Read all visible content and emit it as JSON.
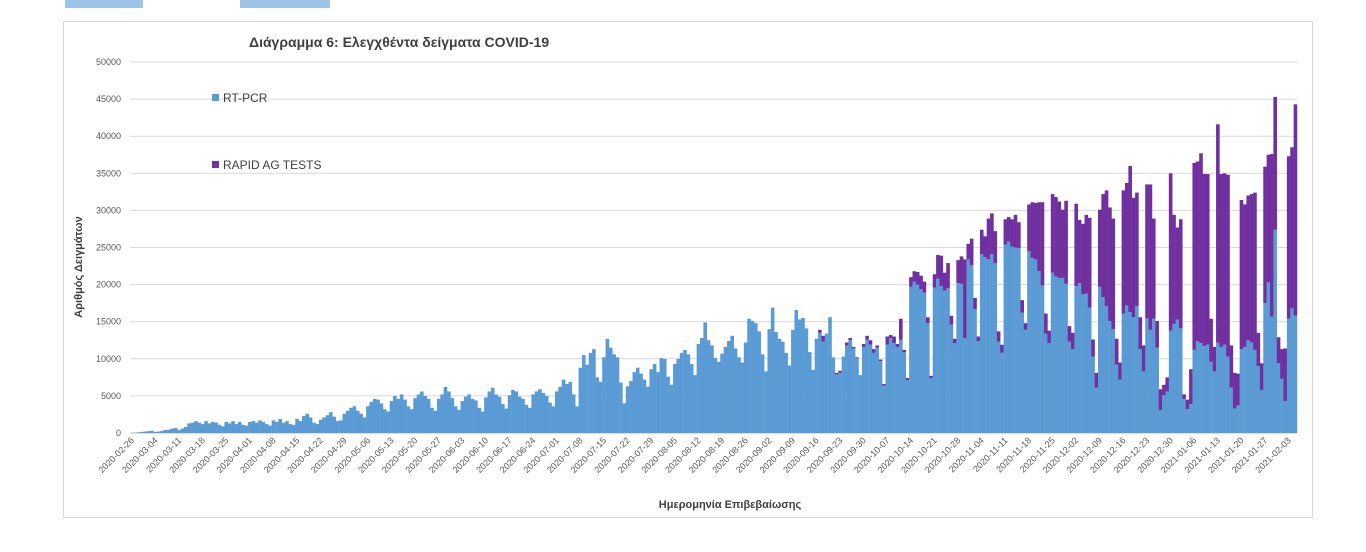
{
  "chart_data": {
    "type": "bar",
    "stacked": true,
    "title": "Διάγραμμα 6: Ελεγχθέντα δείγματα COVID-19",
    "xlabel": "Ημερομηνία Επιβεβαίωσης",
    "ylabel": "Αριθμός Δειγμάτων",
    "ylim": [
      0,
      50000
    ],
    "yticks": [
      0,
      5000,
      10000,
      15000,
      20000,
      25000,
      30000,
      35000,
      40000,
      45000,
      50000
    ],
    "grid": true,
    "legend_position": "top-left",
    "x_start": "2020-02-26",
    "x_end": "2021-02-03",
    "x_tick_labels": [
      "2020-02-26",
      "2020-03-04",
      "2020-03-11",
      "2020-03-18",
      "2020-03-25",
      "2020-04-01",
      "2020-04-08",
      "2020-04-15",
      "2020-04-22",
      "2020-04-29",
      "2020-05-06",
      "2020-05-13",
      "2020-05-20",
      "2020-05-27",
      "2020-06-03",
      "2020-06-10",
      "2020-06-17",
      "2020-06-24",
      "2020-07-01",
      "2020-07-08",
      "2020-07-15",
      "2020-07-22",
      "2020-07-29",
      "2020-08-05",
      "2020-08-12",
      "2020-08-19",
      "2020-08-26",
      "2020-09-02",
      "2020-09-09",
      "2020-09-16",
      "2020-09-23",
      "2020-09-30",
      "2020-10-07",
      "2020-10-14",
      "2020-10-21",
      "2020-10-28",
      "2020-11-04",
      "2020-11-11",
      "2020-11-18",
      "2020-11-25",
      "2020-12-02",
      "2020-12-09",
      "2020-12-16",
      "2020-12-23",
      "2020-12-30",
      "2021-01-06",
      "2021-01-13",
      "2021-01-20",
      "2021-01-27",
      "2021-02-03"
    ],
    "weekly_samples": [
      {
        "date": "2020-02-26",
        "rt_pcr": [
          0,
          50,
          100,
          150,
          200,
          250,
          300
        ],
        "rapid_ag": [
          0,
          0,
          0,
          0,
          0,
          0,
          0
        ]
      },
      {
        "date": "2020-03-04",
        "rt_pcr": [
          150,
          200,
          300,
          400,
          450,
          600,
          700
        ],
        "rapid_ag": [
          0,
          0,
          0,
          0,
          0,
          0,
          0
        ]
      },
      {
        "date": "2020-03-11",
        "rt_pcr": [
          400,
          600,
          800,
          1300,
          1400,
          1600,
          1400
        ],
        "rapid_ag": [
          0,
          0,
          0,
          0,
          0,
          0,
          0
        ]
      },
      {
        "date": "2020-03-18",
        "rt_pcr": [
          1200,
          1600,
          1300,
          1500,
          1400,
          1100,
          900
        ],
        "rapid_ag": [
          0,
          0,
          0,
          0,
          0,
          0,
          0
        ]
      },
      {
        "date": "2020-03-25",
        "rt_pcr": [
          1500,
          1300,
          1600,
          1200,
          1500,
          1100,
          1000
        ],
        "rapid_ag": [
          0,
          0,
          0,
          0,
          0,
          0,
          0
        ]
      },
      {
        "date": "2020-04-01",
        "rt_pcr": [
          1500,
          1600,
          1400,
          1700,
          1500,
          1200,
          1000
        ],
        "rapid_ag": [
          0,
          0,
          0,
          0,
          0,
          0,
          0
        ]
      },
      {
        "date": "2020-04-08",
        "rt_pcr": [
          1700,
          1500,
          1900,
          1400,
          1600,
          1200,
          1100
        ],
        "rapid_ag": [
          0,
          0,
          0,
          0,
          0,
          0,
          0
        ]
      },
      {
        "date": "2020-04-15",
        "rt_pcr": [
          1900,
          1600,
          2300,
          2600,
          2100,
          1400,
          1200
        ],
        "rapid_ag": [
          0,
          0,
          0,
          0,
          0,
          0,
          0
        ]
      },
      {
        "date": "2020-04-22",
        "rt_pcr": [
          1800,
          2100,
          2400,
          2800,
          2200,
          1600,
          1700
        ],
        "rapid_ag": [
          0,
          0,
          0,
          0,
          0,
          0,
          0
        ]
      },
      {
        "date": "2020-04-29",
        "rt_pcr": [
          2600,
          3000,
          3400,
          3600,
          3000,
          2600,
          2100
        ],
        "rapid_ag": [
          0,
          0,
          0,
          0,
          0,
          0,
          0
        ]
      },
      {
        "date": "2020-05-06",
        "rt_pcr": [
          3600,
          4200,
          4600,
          4500,
          4000,
          3200,
          2900
        ],
        "rapid_ag": [
          0,
          0,
          0,
          0,
          0,
          0,
          0
        ]
      },
      {
        "date": "2020-05-13",
        "rt_pcr": [
          4300,
          5000,
          4600,
          5200,
          4500,
          3600,
          3200
        ],
        "rapid_ag": [
          0,
          0,
          0,
          0,
          0,
          0,
          0
        ]
      },
      {
        "date": "2020-05-20",
        "rt_pcr": [
          4700,
          5200,
          5600,
          5000,
          4600,
          3400,
          3000
        ],
        "rapid_ag": [
          0,
          0,
          0,
          0,
          0,
          0,
          0
        ]
      },
      {
        "date": "2020-05-27",
        "rt_pcr": [
          4600,
          5200,
          6200,
          5600,
          4700,
          3600,
          3100
        ],
        "rapid_ag": [
          0,
          0,
          0,
          0,
          0,
          0,
          0
        ]
      },
      {
        "date": "2020-06-03",
        "rt_pcr": [
          4300,
          4900,
          5200,
          4600,
          4400,
          3400,
          2900
        ],
        "rapid_ag": [
          0,
          0,
          0,
          0,
          0,
          0,
          0
        ]
      },
      {
        "date": "2020-06-10",
        "rt_pcr": [
          4800,
          5600,
          6100,
          5200,
          4900,
          3900,
          3300
        ],
        "rapid_ag": [
          0,
          0,
          0,
          0,
          0,
          0,
          0
        ]
      },
      {
        "date": "2020-06-17",
        "rt_pcr": [
          5100,
          5800,
          5600,
          4900,
          4600,
          3800,
          3400
        ],
        "rapid_ag": [
          0,
          0,
          0,
          0,
          0,
          0,
          0
        ]
      },
      {
        "date": "2020-06-24",
        "rt_pcr": [
          5200,
          5600,
          5900,
          5400,
          5000,
          4100,
          3600
        ],
        "rapid_ag": [
          0,
          0,
          0,
          0,
          0,
          0,
          0
        ]
      },
      {
        "date": "2020-07-01",
        "rt_pcr": [
          5600,
          6200,
          7200,
          6600,
          6900,
          5200,
          3600
        ],
        "rapid_ag": [
          0,
          0,
          0,
          0,
          0,
          0,
          0
        ]
      },
      {
        "date": "2020-07-08",
        "rt_pcr": [
          8800,
          10500,
          9200,
          10800,
          11300,
          7500,
          6900
        ],
        "rapid_ag": [
          0,
          0,
          0,
          0,
          0,
          0,
          0
        ]
      },
      {
        "date": "2020-07-15",
        "rt_pcr": [
          10200,
          12700,
          11500,
          10600,
          10200,
          6800,
          4000
        ],
        "rapid_ag": [
          0,
          0,
          0,
          0,
          0,
          0,
          0
        ]
      },
      {
        "date": "2020-07-22",
        "rt_pcr": [
          6300,
          7000,
          8200,
          8800,
          8000,
          7200,
          6200
        ],
        "rapid_ag": [
          0,
          0,
          0,
          0,
          0,
          0,
          0
        ]
      },
      {
        "date": "2020-07-29",
        "rt_pcr": [
          8600,
          9300,
          8200,
          10100,
          10000,
          7600,
          6500
        ],
        "rapid_ag": [
          0,
          0,
          0,
          0,
          0,
          0,
          0
        ]
      },
      {
        "date": "2020-08-05",
        "rt_pcr": [
          9300,
          10000,
          10800,
          11200,
          10600,
          9300,
          7800
        ],
        "rapid_ag": [
          0,
          0,
          0,
          0,
          0,
          0,
          0
        ]
      },
      {
        "date": "2020-08-12",
        "rt_pcr": [
          12000,
          12800,
          14900,
          12500,
          11800,
          10100,
          9600
        ],
        "rapid_ag": [
          0,
          0,
          0,
          0,
          0,
          0,
          0
        ]
      },
      {
        "date": "2020-08-19",
        "rt_pcr": [
          10700,
          11600,
          12400,
          13100,
          11400,
          10200,
          9500
        ],
        "rapid_ag": [
          0,
          0,
          0,
          0,
          0,
          0,
          0
        ]
      },
      {
        "date": "2020-08-26",
        "rt_pcr": [
          12200,
          15400,
          15100,
          14800,
          13700,
          10600,
          8300
        ],
        "rapid_ag": [
          0,
          0,
          0,
          0,
          0,
          0,
          0
        ]
      },
      {
        "date": "2020-09-02",
        "rt_pcr": [
          14000,
          16900,
          13600,
          12700,
          12300,
          10800,
          9100
        ],
        "rapid_ag": [
          0,
          0,
          0,
          0,
          0,
          0,
          0
        ]
      },
      {
        "date": "2020-09-09",
        "rt_pcr": [
          13900,
          16600,
          15300,
          15500,
          14100,
          10900,
          8500
        ],
        "rapid_ag": [
          0,
          0,
          0,
          0,
          0,
          0,
          0
        ]
      },
      {
        "date": "2020-09-16",
        "rt_pcr": [
          12700,
          13500,
          12300,
          13400,
          15600,
          10200,
          7900
        ],
        "rapid_ag": [
          0,
          400,
          800,
          0,
          0,
          0,
          200
        ]
      },
      {
        "date": "2020-09-23",
        "rt_pcr": [
          8100,
          10300,
          11800,
          12500,
          11400,
          10100,
          7800
        ],
        "rapid_ag": [
          300,
          0,
          400,
          300,
          200,
          100,
          0
        ]
      },
      {
        "date": "2020-09-30",
        "rt_pcr": [
          11600,
          12600,
          11900,
          10800,
          11500,
          9700,
          6400
        ],
        "rapid_ag": [
          400,
          500,
          600,
          500,
          300,
          200,
          200
        ]
      },
      {
        "date": "2020-10-07",
        "rt_pcr": [
          11900,
          12800,
          12100,
          11600,
          12600,
          10900,
          7100
        ],
        "rapid_ag": [
          1100,
          400,
          900,
          400,
          2800,
          300,
          300
        ]
      },
      {
        "date": "2020-10-14",
        "rt_pcr": [
          19700,
          20400,
          20000,
          19400,
          18900,
          14800,
          7400
        ],
        "rapid_ag": [
          1300,
          1400,
          1700,
          1800,
          1500,
          800,
          300
        ]
      },
      {
        "date": "2020-10-21",
        "rt_pcr": [
          19600,
          20800,
          19800,
          19200,
          19500,
          14600,
          12100
        ],
        "rapid_ag": [
          1800,
          3200,
          4100,
          2400,
          3400,
          1200,
          600
        ]
      },
      {
        "date": "2020-10-28",
        "rt_pcr": [
          20200,
          20100,
          12800,
          23400,
          22600,
          16700,
          12400
        ],
        "rapid_ag": [
          3100,
          3700,
          10600,
          2100,
          3600,
          1500,
          600
        ]
      },
      {
        "date": "2020-11-04",
        "rt_pcr": [
          24100,
          23700,
          23400,
          24100,
          22900,
          12300,
          10800
        ],
        "rapid_ag": [
          3300,
          2800,
          5500,
          5500,
          4300,
          1400,
          1100
        ]
      },
      {
        "date": "2020-11-11",
        "rt_pcr": [
          25400,
          25800,
          25100,
          25000,
          24900,
          16200,
          13900
        ],
        "rapid_ag": [
          3400,
          3300,
          3700,
          4400,
          3500,
          1700,
          900
        ]
      },
      {
        "date": "2020-11-18",
        "rt_pcr": [
          24500,
          23600,
          23400,
          21800,
          19900,
          13400,
          12100
        ],
        "rapid_ag": [
          6300,
          7500,
          7600,
          9300,
          11200,
          2700,
          1700
        ]
      },
      {
        "date": "2020-11-25",
        "rt_pcr": [
          21600,
          21100,
          20900,
          20900,
          20100,
          12300,
          11300
        ],
        "rapid_ag": [
          10600,
          10700,
          10300,
          9200,
          11200,
          2100,
          2200
        ]
      },
      {
        "date": "2020-12-02",
        "rt_pcr": [
          19800,
          20200,
          18700,
          18800,
          16900,
          10300,
          6100
        ],
        "rapid_ag": [
          11100,
          8500,
          9500,
          10600,
          12100,
          2300,
          2000
        ]
      },
      {
        "date": "2020-12-09",
        "rt_pcr": [
          19700,
          18300,
          17100,
          15100,
          14000,
          9200,
          7200
        ],
        "rapid_ag": [
          10400,
          13900,
          15600,
          15300,
          14900,
          3500,
          2300
        ]
      },
      {
        "date": "2020-12-16",
        "rt_pcr": [
          16100,
          17200,
          16300,
          15600,
          17100,
          11300,
          8300
        ],
        "rapid_ag": [
          16600,
          16500,
          19700,
          16100,
          15300,
          4300,
          3500
        ]
      },
      {
        "date": "2020-12-23",
        "rt_pcr": [
          15500,
          13900,
          15400,
          11500,
          3100,
          5100,
          5600
        ],
        "rapid_ag": [
          18000,
          19600,
          13500,
          3600,
          2800,
          1400,
          1900
        ]
      },
      {
        "date": "2020-12-30",
        "rt_pcr": [
          13800,
          14700,
          15300,
          14100,
          4600,
          3200,
          3900
        ],
        "rapid_ag": [
          21200,
          14700,
          12400,
          14700,
          600,
          1300,
          4700
        ]
      },
      {
        "date": "2021-01-06",
        "rt_pcr": [
          11200,
          12400,
          12100,
          11700,
          11900,
          9600,
          8300
        ],
        "rapid_ag": [
          25200,
          24200,
          25600,
          23200,
          23000,
          5800,
          3300
        ]
      },
      {
        "date": "2021-01-13",
        "rt_pcr": [
          12200,
          11600,
          11900,
          10300,
          6100,
          3300,
          3700
        ],
        "rapid_ag": [
          29400,
          23300,
          23100,
          24500,
          5700,
          4800,
          4300
        ]
      },
      {
        "date": "2021-01-20",
        "rt_pcr": [
          11300,
          11600,
          12500,
          12200,
          11200,
          9000,
          5800
        ],
        "rapid_ag": [
          20100,
          19200,
          19500,
          20000,
          21200,
          4500,
          3600
        ]
      },
      {
        "date": "2021-01-27",
        "rt_pcr": [
          17500,
          20300,
          15700,
          27400,
          9400,
          7300,
          4300
        ],
        "rapid_ag": [
          18400,
          17200,
          21900,
          17900,
          3500,
          4000,
          7100
        ]
      },
      {
        "date": "2021-02-03",
        "rt_pcr": [
          15400,
          16800,
          15800
        ],
        "rapid_ag": [
          21900,
          21700,
          28500
        ]
      }
    ],
    "series": [
      {
        "name": "RT-PCR",
        "color": "#5b9bd5"
      },
      {
        "name": "RAPID AG TESTS",
        "color": "#7030a0"
      }
    ]
  }
}
